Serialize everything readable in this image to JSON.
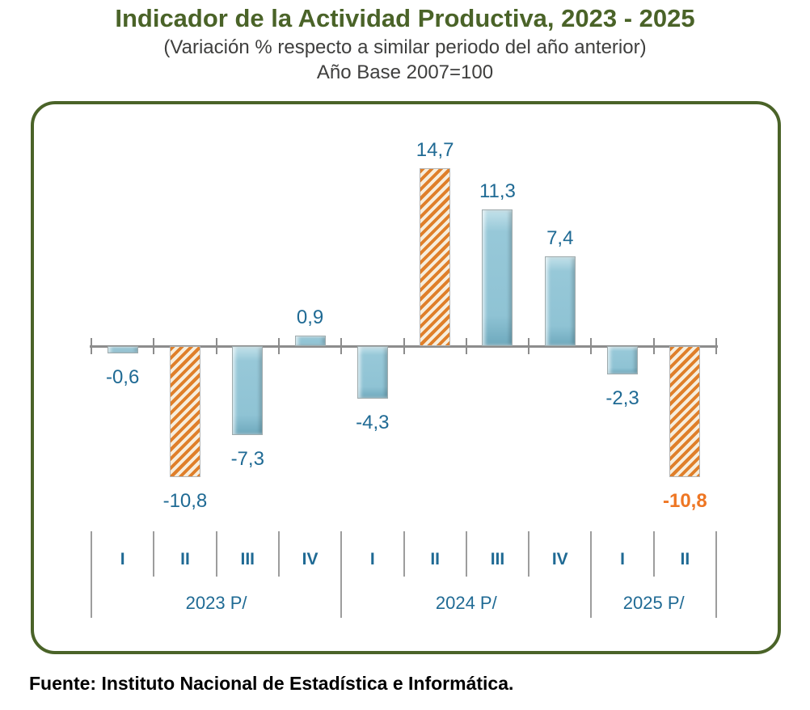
{
  "header": {
    "title": "Indicador de la Actividad Productiva, 2023 - 2025",
    "subtitle1": "(Variación % respecto a similar periodo del año anterior)",
    "subtitle2": "Año Base 2007=100"
  },
  "footer": {
    "source": "Fuente: Instituto Nacional de Estadística e Informática."
  },
  "colors": {
    "title_green": "#4a6328",
    "box_border_green": "#4a6328",
    "label_teal": "#1f6a94",
    "bar_blue": "#92c5d6",
    "bar_orange_stripe": "#df7f2a",
    "highlight_orange": "#ee7623",
    "axis_gray": "#8c8c8c"
  },
  "chart_data": {
    "type": "bar",
    "title": "Indicador de la Actividad Productiva, 2023 - 2025",
    "subtitle": "(Variación % respecto a similar periodo del año anterior)",
    "base_year_note": "Año Base 2007=100",
    "ylabel": "Variación %",
    "ylim": [
      -12,
      16
    ],
    "grid": false,
    "legend": "none",
    "categories": [
      "I",
      "II",
      "III",
      "IV",
      "I",
      "II",
      "III",
      "IV",
      "I",
      "II"
    ],
    "groups": [
      {
        "label": "2023 P/",
        "span": 4
      },
      {
        "label": "2024 P/",
        "span": 4
      },
      {
        "label": "2025 P/",
        "span": 2
      }
    ],
    "series": [
      {
        "name": "Variación % respecto a similar periodo del año anterior",
        "values": [
          -0.6,
          -10.8,
          -7.3,
          0.9,
          -4.3,
          14.7,
          11.3,
          7.4,
          -2.3,
          -10.8
        ]
      }
    ],
    "value_labels": [
      "-0,6",
      "-10,8",
      "-7,3",
      "0,9",
      "-4,3",
      "14,7",
      "11,3",
      "7,4",
      "-2,3",
      "-10,8"
    ],
    "bar_styles": [
      "blue",
      "orange",
      "blue",
      "blue",
      "blue",
      "orange",
      "blue",
      "blue",
      "blue",
      "orange"
    ],
    "highlighted_label_index": 9
  }
}
